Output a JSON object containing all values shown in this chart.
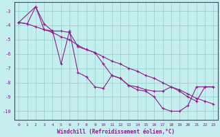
{
  "xlabel": "Windchill (Refroidissement éolien,°C)",
  "xlim": [
    -0.5,
    23.5
  ],
  "ylim": [
    -10.6,
    -2.4
  ],
  "yticks": [
    -10,
    -9,
    -8,
    -7,
    -6,
    -5,
    -4,
    -3
  ],
  "xticks": [
    0,
    1,
    2,
    3,
    4,
    5,
    6,
    7,
    8,
    9,
    10,
    11,
    12,
    13,
    14,
    15,
    16,
    17,
    18,
    19,
    20,
    21,
    22,
    23
  ],
  "bg_color": "#c5eeee",
  "grid_color": "#9ecece",
  "line_color": "#8b1a8b",
  "line1_x": [
    0,
    1,
    2,
    3,
    4,
    5,
    6,
    7,
    8,
    9,
    10,
    11,
    12,
    13,
    14,
    15,
    16,
    17,
    18,
    19,
    20,
    21,
    22,
    23
  ],
  "line1_y": [
    -3.8,
    -3.9,
    -4.1,
    -4.3,
    -4.5,
    -4.8,
    -5.0,
    -5.4,
    -5.7,
    -5.9,
    -6.2,
    -6.5,
    -6.7,
    -7.0,
    -7.2,
    -7.5,
    -7.7,
    -8.0,
    -8.3,
    -8.5,
    -8.8,
    -9.1,
    -9.3,
    -9.5
  ],
  "line2_x": [
    0,
    2,
    3,
    4,
    5,
    6,
    7,
    8,
    9,
    10,
    11,
    12,
    13,
    14,
    15,
    16,
    17,
    18,
    19,
    20,
    21,
    22,
    23
  ],
  "line2_y": [
    -3.8,
    -2.7,
    -4.3,
    -4.4,
    -6.7,
    -4.4,
    -7.3,
    -7.6,
    -8.3,
    -8.4,
    -7.5,
    -7.7,
    -8.2,
    -8.5,
    -8.6,
    -9.0,
    -9.8,
    -10.0,
    -10.0,
    -9.6,
    -8.3,
    -8.3,
    -8.3
  ],
  "line3_x": [
    0,
    1,
    2,
    3,
    4,
    5,
    6,
    7,
    8,
    9,
    10,
    11,
    12,
    13,
    14,
    15,
    16,
    17,
    18,
    19,
    20,
    21,
    22,
    23
  ],
  "line3_y": [
    -3.8,
    -3.9,
    -2.7,
    -3.9,
    -4.4,
    -4.4,
    -4.5,
    -5.5,
    -5.7,
    -5.9,
    -6.7,
    -7.5,
    -7.7,
    -8.2,
    -8.3,
    -8.5,
    -8.6,
    -8.6,
    -8.3,
    -8.6,
    -9.0,
    -9.3,
    -8.3,
    -8.3
  ]
}
